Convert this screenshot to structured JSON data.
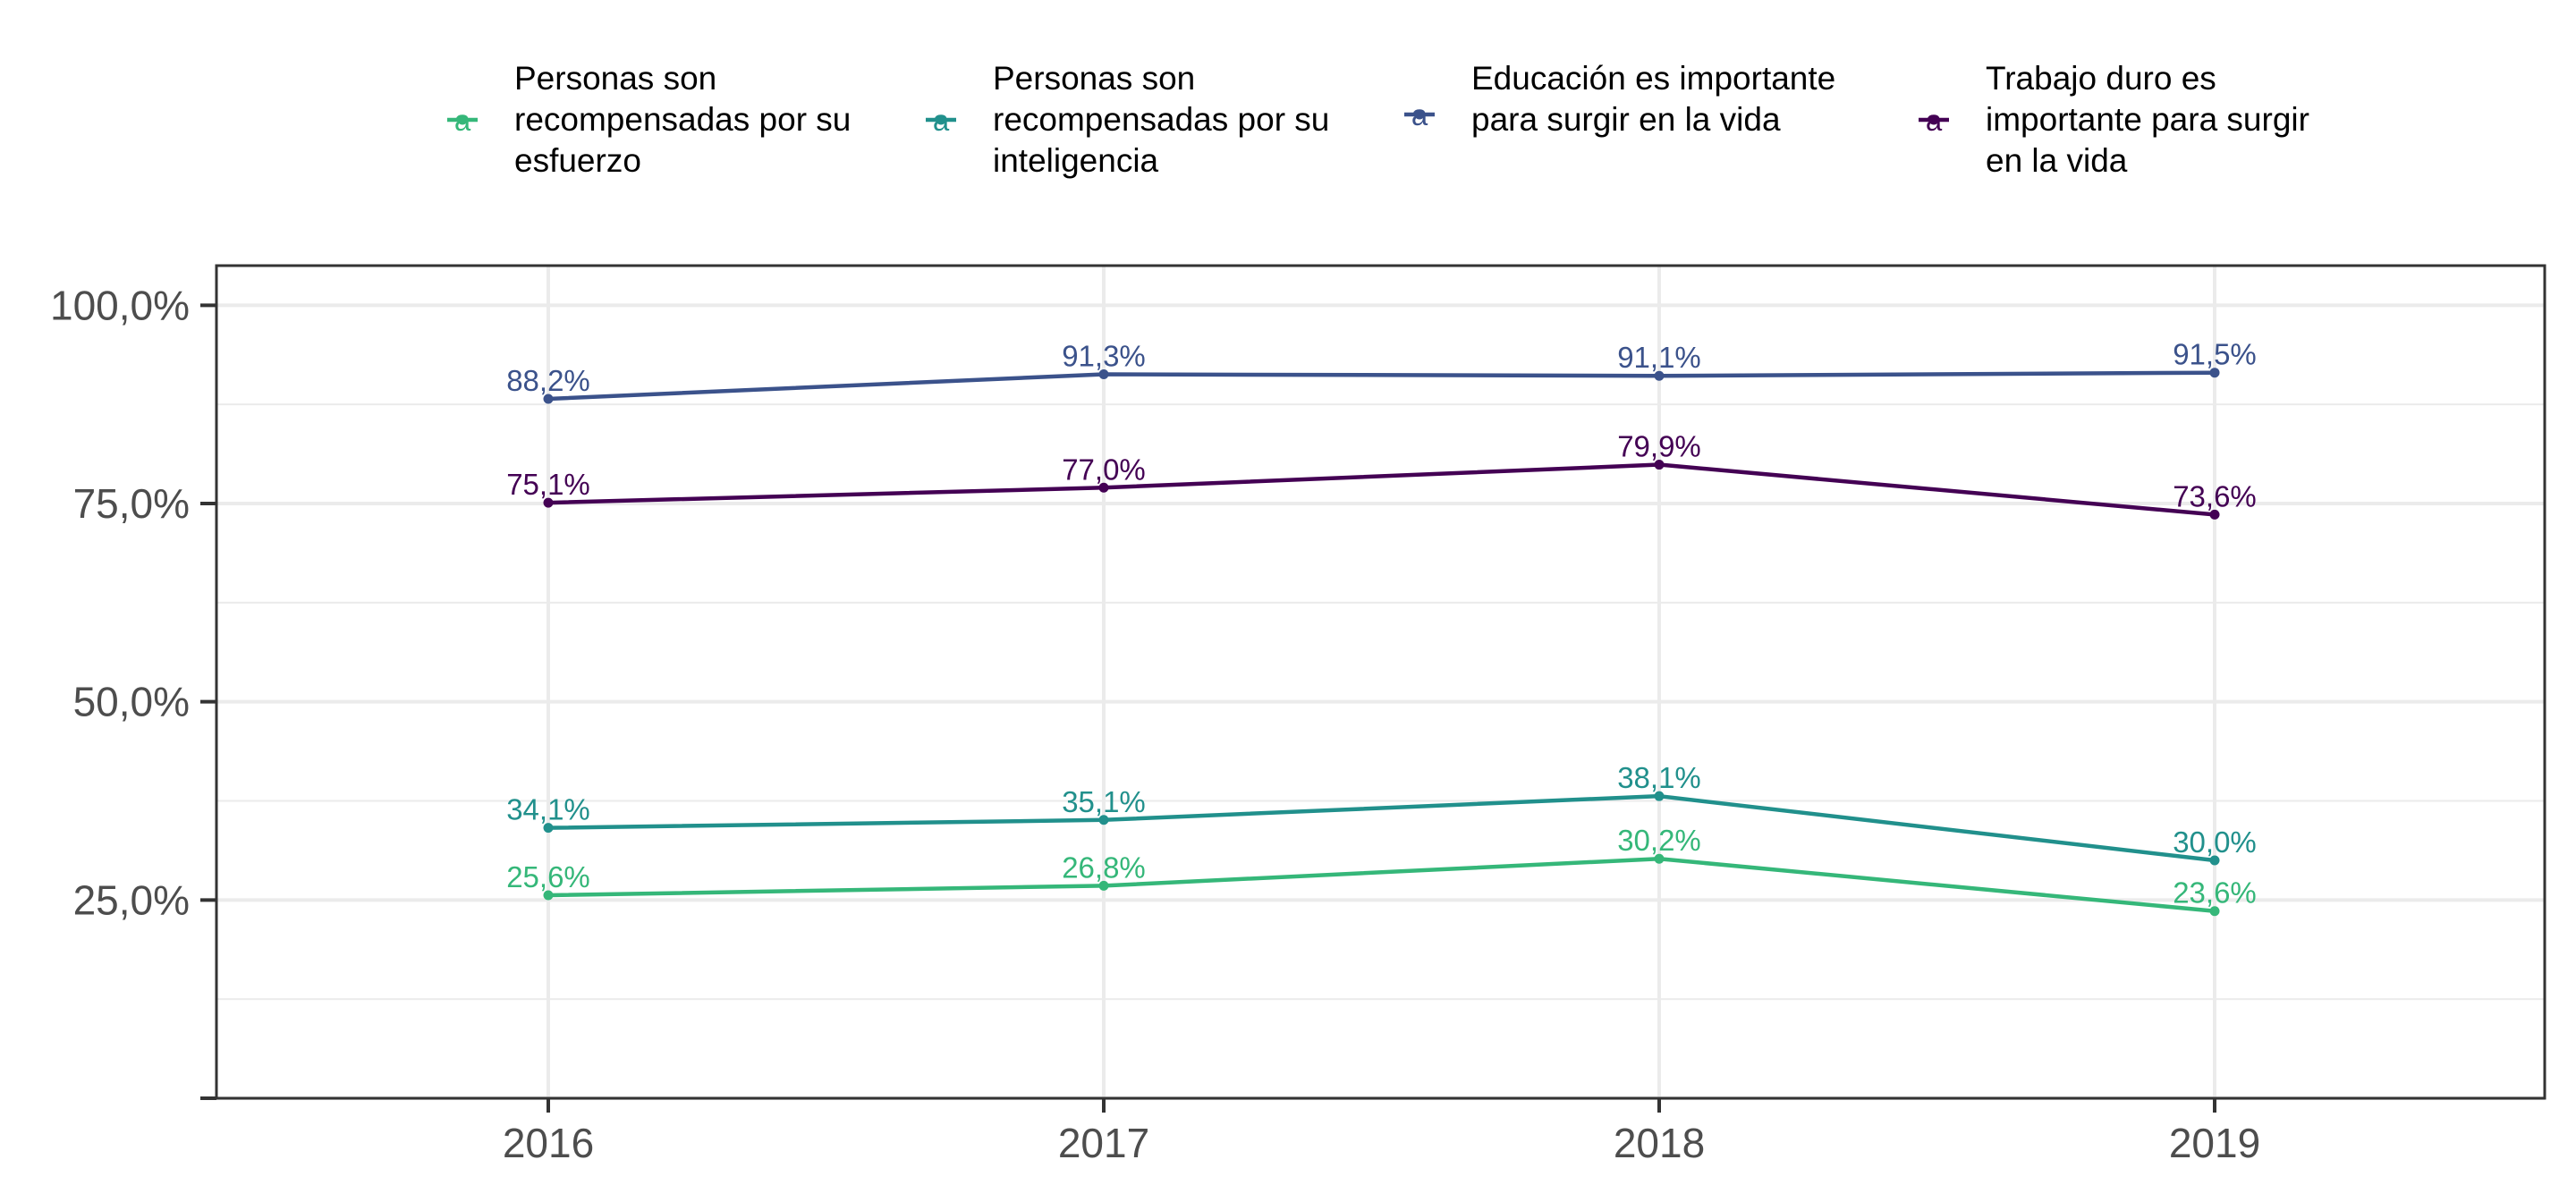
{
  "chart_data": {
    "type": "line",
    "title": "",
    "xlabel": "",
    "ylabel": "",
    "x": [
      "2016",
      "2017",
      "2018",
      "2019"
    ],
    "ylim": [
      0,
      105
    ],
    "y_tick_values": [
      0,
      25,
      50,
      75,
      100
    ],
    "y_tick_labels": [
      "",
      "25,0%",
      "50,0%",
      "75,0%",
      "100,0%"
    ],
    "grid": true,
    "legend_position": "top",
    "series": [
      {
        "name": "Personas son recompensadas por su esfuerzo",
        "legend_lines": [
          "Personas son",
          "recompensadas por su",
          "esfuerzo"
        ],
        "color": "#35b779",
        "values": [
          25.6,
          26.8,
          30.2,
          23.6
        ],
        "labels": [
          "25,6%",
          "26,8%",
          "30,2%",
          "23,6%"
        ]
      },
      {
        "name": "Personas son recompensadas por su inteligencia",
        "legend_lines": [
          "Personas son",
          "recompensadas por su",
          "inteligencia"
        ],
        "color": "#21908c",
        "values": [
          34.1,
          35.1,
          38.1,
          30.0
        ],
        "labels": [
          "34,1%",
          "35,1%",
          "38,1%",
          "30,0%"
        ]
      },
      {
        "name": "Educación es importante para surgir en la vida",
        "legend_lines": [
          "Educación es importante",
          "para surgir en la vida"
        ],
        "color": "#3b528b",
        "values": [
          88.2,
          91.3,
          91.1,
          91.5
        ],
        "labels": [
          "88,2%",
          "91,3%",
          "91,1%",
          "91,5%"
        ]
      },
      {
        "name": "Trabajo duro es importante para surgir en la vida",
        "legend_lines": [
          "Trabajo duro es",
          "importante para surgir",
          "en la vida"
        ],
        "color": "#440154",
        "values": [
          75.1,
          77.0,
          79.9,
          73.6
        ],
        "labels": [
          "75,1%",
          "77,0%",
          "79,9%",
          "73,6%"
        ]
      }
    ],
    "legend_key_glyph": "a"
  }
}
